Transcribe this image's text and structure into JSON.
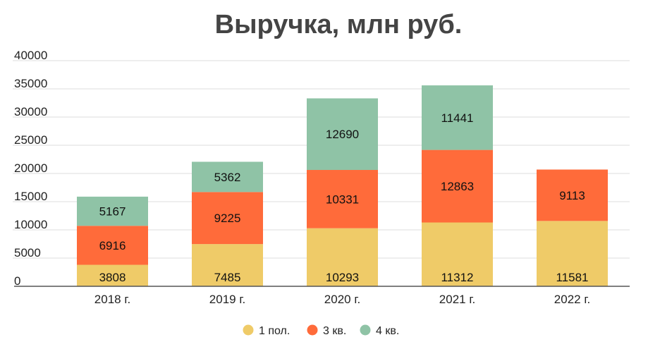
{
  "chart_data": {
    "type": "bar",
    "stacked": true,
    "title": "Выручка, млн руб.",
    "xlabel": "",
    "ylabel": "",
    "categories": [
      "2018 г.",
      "2019 г.",
      "2020 г.",
      "2021 г.",
      "2022 г."
    ],
    "ylim": [
      0,
      40000
    ],
    "yticks": [
      0,
      5000,
      10000,
      15000,
      20000,
      25000,
      30000,
      35000,
      40000
    ],
    "grid": true,
    "legend_position": "bottom",
    "series": [
      {
        "name": "1 пол.",
        "color": "#EFCB68",
        "values": [
          3808,
          7485,
          10293,
          11312,
          11581
        ]
      },
      {
        "name": "3 кв.",
        "color": "#FF6B3A",
        "values": [
          6916,
          9225,
          10331,
          12863,
          9113
        ]
      },
      {
        "name": "4 кв.",
        "color": "#8FC3A6",
        "values": [
          5167,
          5362,
          12690,
          11441,
          null
        ]
      }
    ]
  }
}
